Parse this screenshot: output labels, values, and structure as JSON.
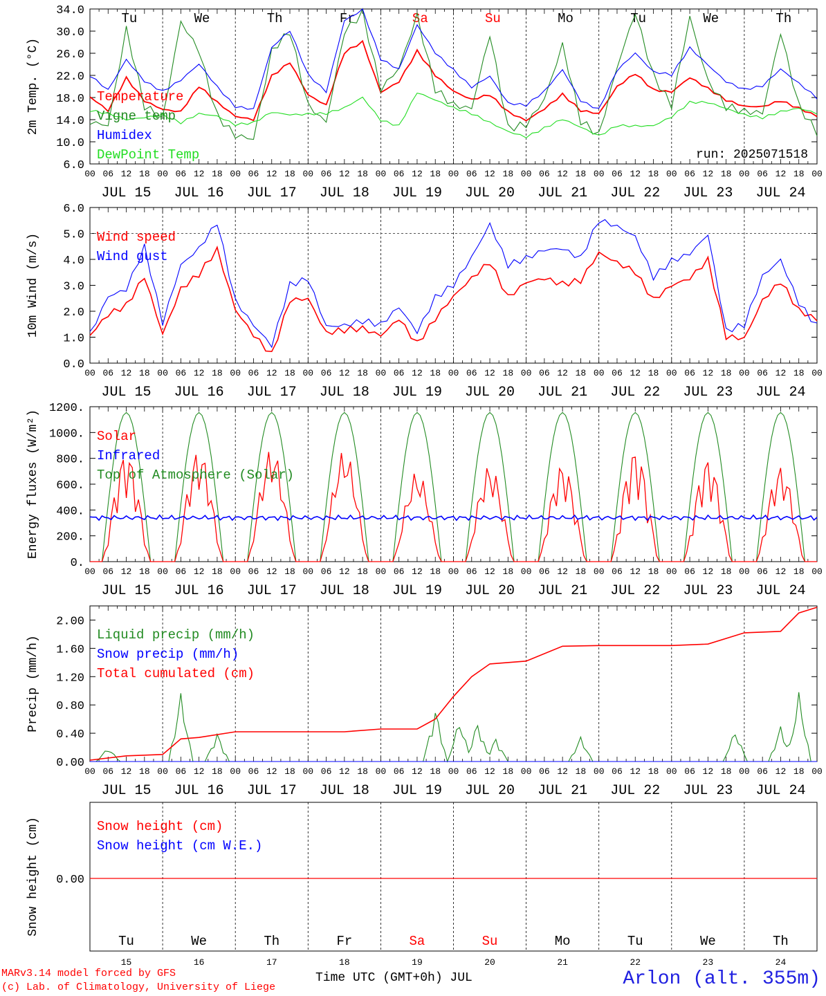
{
  "run_label": "run: 2025071518",
  "hour_ticks": [
    "00",
    "06",
    "12",
    "18"
  ],
  "days": [
    "JUL 15",
    "JUL 16",
    "JUL 17",
    "JUL 18",
    "JUL 19",
    "JUL 20",
    "JUL 21",
    "JUL 22",
    "JUL 23",
    "JUL 24"
  ],
  "weekdays": [
    "Tu",
    "We",
    "Th",
    "Fr",
    "Sa",
    "Su",
    "Mo",
    "Tu",
    "We",
    "Th"
  ],
  "weekend_color": "#ff0000",
  "day_numbers": [
    "15",
    "16",
    "17",
    "18",
    "19",
    "20",
    "21",
    "22",
    "23",
    "24"
  ],
  "footer": {
    "model": "MARv3.14 model forced by GFS",
    "lab": "(c) Lab. of Climatology, University of Liege",
    "xlabel": "Time UTC (GMT+0h) JUL",
    "station": "Arlon (alt. 355m)"
  },
  "chart_data": [
    {
      "type": "line",
      "ylabel": "2m Temp. (°C)",
      "ylim": [
        6,
        34
      ],
      "yticks": [
        "34.0",
        "30.0",
        "26.0",
        "22.0",
        "18.0",
        "14.0",
        "10.0",
        "6.0"
      ],
      "x_hours": [
        0,
        6,
        12,
        18,
        24,
        30,
        36,
        42,
        48,
        54,
        60,
        66,
        72,
        78,
        84,
        90,
        96,
        102,
        108,
        114,
        120,
        126,
        132,
        138,
        144,
        150,
        156,
        162,
        168,
        174,
        180,
        186,
        192,
        198,
        204,
        210,
        216,
        222,
        228,
        234,
        240
      ],
      "series": [
        {
          "name": "Temperature",
          "color": "#ff0000",
          "values": [
            18,
            15.5,
            21.5,
            17.5,
            16,
            15.5,
            20,
            17,
            14.5,
            14,
            22,
            24.5,
            18.5,
            16.5,
            26,
            28,
            19,
            21,
            26.5,
            22,
            19,
            17.5,
            18.5,
            15.5,
            14,
            16,
            18.5,
            15.5,
            15,
            20,
            22.5,
            19.5,
            19,
            21.5,
            19.5,
            17.5,
            16.5,
            16.5,
            17.5,
            16,
            14.5
          ]
        },
        {
          "name": "Vigne temp",
          "color": "#228b22",
          "values": [
            14,
            13,
            30,
            16,
            14,
            32,
            27,
            15,
            11,
            10,
            26,
            30,
            17,
            14,
            30,
            33,
            19,
            23,
            33,
            20,
            17,
            16,
            29,
            12,
            13,
            18,
            28,
            14,
            11,
            23,
            33,
            22,
            17,
            33,
            21,
            16,
            15,
            15,
            30,
            17,
            12
          ]
        },
        {
          "name": "Humidex",
          "color": "#0000ff",
          "values": [
            22,
            19.5,
            25,
            21,
            19,
            21,
            24,
            20,
            16.5,
            16,
            27,
            30,
            22,
            19,
            32,
            34,
            25,
            23,
            31,
            26,
            23,
            20,
            22,
            17,
            16.5,
            19,
            23,
            17.5,
            16,
            23,
            26,
            22.5,
            22,
            27,
            24,
            21,
            19.5,
            20,
            23,
            20.5,
            18
          ]
        },
        {
          "name": "DewPoint Temp",
          "color": "#22dd22",
          "values": [
            15.5,
            15,
            14,
            14.5,
            15,
            13.5,
            15,
            14.5,
            13,
            13.5,
            15.5,
            15,
            15,
            15,
            16,
            18,
            14,
            13,
            19,
            17.5,
            16,
            15,
            13.5,
            12,
            11,
            12.5,
            14,
            12.5,
            11,
            13,
            13,
            13,
            14.5,
            17,
            17,
            16,
            15,
            14.5,
            15.5,
            16,
            15
          ]
        }
      ],
      "legend": [
        "Temperature",
        "Vigne temp",
        "Humidex",
        "DewPoint Temp"
      ],
      "legend_placement": "top-left",
      "grid": "dotted day lines"
    },
    {
      "type": "line",
      "ylabel": "10m Wind (m/s)",
      "ylim": [
        0,
        6
      ],
      "yticks": [
        "6.0",
        "5.0",
        "4.0",
        "3.0",
        "2.0",
        "1.0",
        "0.0"
      ],
      "reference_line": 5.0,
      "x_hours": [
        0,
        6,
        12,
        18,
        24,
        30,
        36,
        42,
        48,
        54,
        60,
        66,
        72,
        78,
        84,
        90,
        96,
        102,
        108,
        114,
        120,
        126,
        132,
        138,
        144,
        150,
        156,
        162,
        168,
        174,
        180,
        186,
        192,
        198,
        204,
        210,
        216,
        222,
        228,
        234,
        240
      ],
      "series": [
        {
          "name": "Wind speed",
          "color": "#ff0000",
          "values": [
            1.0,
            1.8,
            2.2,
            3.4,
            1.2,
            2.9,
            3.4,
            4.3,
            2.0,
            1.1,
            0.4,
            2.5,
            2.5,
            1.1,
            1.2,
            1.3,
            1.1,
            1.8,
            0.8,
            1.7,
            2.5,
            3.2,
            3.9,
            2.6,
            3.2,
            3.3,
            3.0,
            3.1,
            4.2,
            3.9,
            3.6,
            2.5,
            3.0,
            3.2,
            3.9,
            1.0,
            1.0,
            2.5,
            3.2,
            2.0,
            1.6
          ]
        },
        {
          "name": "Wind gust",
          "color": "#0000ff",
          "values": [
            1.2,
            2.6,
            2.8,
            4.4,
            1.5,
            3.8,
            4.5,
            5.5,
            2.4,
            1.4,
            0.6,
            3.0,
            3.3,
            1.5,
            1.5,
            1.6,
            1.4,
            2.1,
            1.2,
            2.6,
            3.1,
            4.1,
            5.3,
            3.7,
            4.0,
            4.4,
            4.5,
            4.1,
            5.5,
            5.2,
            4.8,
            3.3,
            4.0,
            4.3,
            5.0,
            1.2,
            1.4,
            3.3,
            4.0,
            2.4,
            1.5
          ]
        }
      ],
      "legend": [
        "Wind speed",
        "Wind gust"
      ],
      "legend_placement": "top-left"
    },
    {
      "type": "line",
      "ylabel": "Energy fluxes (W/m²)",
      "ylim": [
        0,
        1200
      ],
      "yticks": [
        "1200.",
        "1000.",
        "800.",
        "600.",
        "400.",
        "200.",
        "0."
      ],
      "series": [
        {
          "name": "Solar",
          "color": "#ff0000",
          "daily_peaks": [
            850,
            870,
            880,
            865,
            700,
            750,
            760,
            870,
            800,
            740
          ]
        },
        {
          "name": "Infrared",
          "color": "#0000ff",
          "values_mean": 340
        },
        {
          "name": "Top of Atmosphere (Solar)",
          "color": "#228b22",
          "daily_peak": 1155
        }
      ],
      "legend": [
        "Solar",
        "Infrared",
        "Top of Atmosphere (Solar)"
      ],
      "legend_placement": "top-left"
    },
    {
      "type": "line",
      "ylabel": "Precip (mm/h)",
      "ylim": [
        0,
        2.2
      ],
      "yticks": [
        "2.00",
        "1.60",
        "1.20",
        "0.80",
        "0.40",
        "0.00"
      ],
      "x_hours": [
        0,
        12,
        24,
        30,
        36,
        48,
        60,
        72,
        84,
        96,
        108,
        114,
        120,
        126,
        132,
        144,
        156,
        168,
        180,
        192,
        204,
        216,
        228,
        234,
        240
      ],
      "series": [
        {
          "name": "Liquid precip (mm/h)",
          "color": "#228b22",
          "peaks": [
            {
              "h": 6,
              "v": 0.2
            },
            {
              "h": 30,
              "v": 0.97
            },
            {
              "h": 42,
              "v": 0.4
            },
            {
              "h": 114,
              "v": 0.75
            },
            {
              "h": 122,
              "v": 0.6
            },
            {
              "h": 128,
              "v": 0.57
            },
            {
              "h": 134,
              "v": 0.33
            },
            {
              "h": 162,
              "v": 0.35
            },
            {
              "h": 213,
              "v": 0.45
            },
            {
              "h": 228,
              "v": 0.5
            },
            {
              "h": 234,
              "v": 0.98
            }
          ]
        },
        {
          "name": "Snow precip (mm/h)",
          "color": "#0000ff",
          "values": [
            0
          ]
        },
        {
          "name": "Total cumulated (cm)",
          "color": "#ff0000",
          "values": [
            0.02,
            0.08,
            0.1,
            0.32,
            0.34,
            0.42,
            0.42,
            0.42,
            0.42,
            0.46,
            0.46,
            0.6,
            0.92,
            1.2,
            1.38,
            1.42,
            1.63,
            1.64,
            1.64,
            1.64,
            1.66,
            1.82,
            1.84,
            2.1,
            2.18
          ]
        }
      ],
      "legend": [
        "Liquid precip (mm/h)",
        "Snow precip (mm/h)",
        "Total cumulated (cm)"
      ],
      "legend_placement": "top-left"
    },
    {
      "type": "line",
      "ylabel": "Snow height (cm)",
      "yticks": [
        "0.00"
      ],
      "series": [
        {
          "name": "Snow height (cm)",
          "color": "#ff0000",
          "values": [
            0
          ]
        },
        {
          "name": "Snow height (cm W.E.)",
          "color": "#0000ff",
          "values": [
            0
          ]
        }
      ],
      "legend": [
        "Snow height (cm)",
        "Snow height (cm W.E.)"
      ],
      "legend_placement": "top-left"
    }
  ]
}
